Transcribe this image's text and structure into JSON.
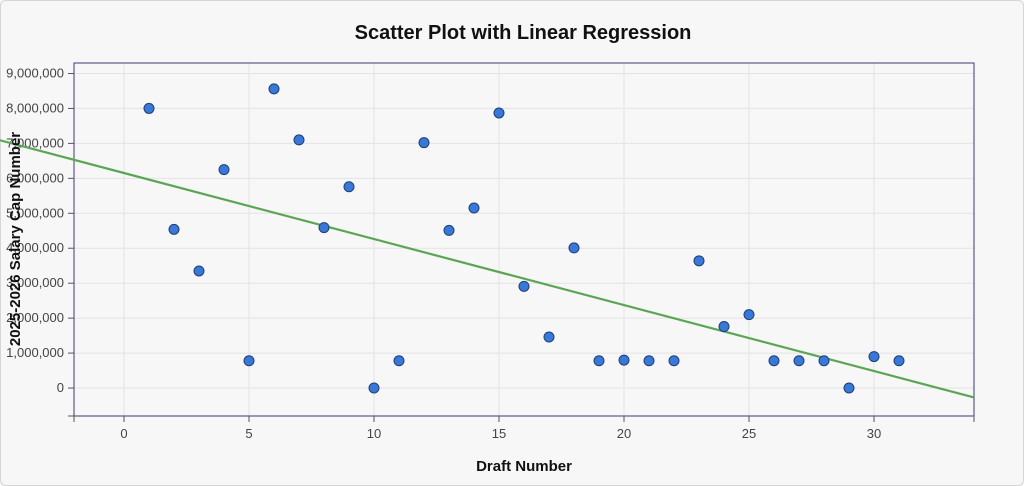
{
  "chart_data": {
    "type": "scatter",
    "title": "Scatter Plot with Linear Regression",
    "xlabel": "Draft Number",
    "ylabel": "2025-2026 Salary Cap Number",
    "xlim": [
      -2,
      34
    ],
    "ylim": [
      -800000,
      9300000
    ],
    "xticks": [
      0,
      5,
      10,
      15,
      20,
      25,
      30
    ],
    "xtick_labels": [
      "0",
      "5",
      "10",
      "15",
      "20",
      "25",
      "30"
    ],
    "yticks": [
      0,
      1000000,
      2000000,
      3000000,
      4000000,
      5000000,
      6000000,
      7000000,
      8000000,
      9000000
    ],
    "ytick_labels": [
      "0",
      "1,000,000",
      "2,000,000",
      "3,000,000",
      "4,000,000",
      "5,000,000",
      "6,000,000",
      "7,000,000",
      "8,000,000",
      "9,000,000"
    ],
    "grid": true,
    "series": [
      {
        "type": "scatter",
        "color": "#3a78d8",
        "x": [
          1,
          2,
          3,
          4,
          5,
          6,
          7,
          8,
          9,
          10,
          11,
          12,
          13,
          14,
          15,
          16,
          17,
          18,
          19,
          20,
          21,
          22,
          23,
          24,
          25,
          26,
          27,
          28,
          29,
          30,
          31
        ],
        "y": [
          8000000,
          4540000,
          3350000,
          6250000,
          780000,
          8560000,
          7100000,
          4590000,
          5760000,
          0,
          780000,
          7020000,
          4510000,
          5150000,
          7870000,
          2910000,
          1460000,
          4010000,
          780000,
          800000,
          780000,
          780000,
          3640000,
          1760000,
          2100000,
          780000,
          780000,
          780000,
          0,
          900000,
          780000
        ]
      },
      {
        "type": "line",
        "color": "#5aa655",
        "x": [
          -2,
          34
        ],
        "y": [
          6530000,
          -270000
        ]
      }
    ]
  }
}
